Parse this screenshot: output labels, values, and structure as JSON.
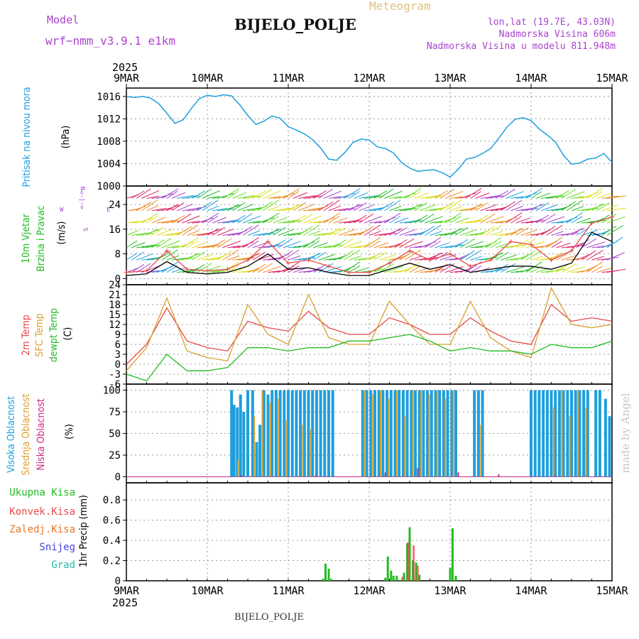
{
  "header": {
    "model_label": "Model",
    "model_value": "wrf−nmm_v3.9.1  e1km",
    "title": "BIJELO_POLJE",
    "subtitle": "Meteogram",
    "coords": "lon,lat (19.7E, 43.03N)",
    "elevation": "Nadmorska Visina 606m",
    "model_elevation": "Nadmorska Visina u modelu 811.948m",
    "footer_station": "BIJELO_POLJE",
    "credit": "made by Angel"
  },
  "colors": {
    "pressure": "#1e9fdc",
    "wind_label": "#22bb22",
    "wind_dir": "#aa44cc",
    "temp2m": "#e84848",
    "sfc_temp": "#d9a030",
    "dewpt": "#22bb22",
    "cloud_high": "#1e9fdc",
    "cloud_mid": "#d9a030",
    "cloud_low": "#cc2a80",
    "precip_total": "#22bb22",
    "precip_conv": "#e84848",
    "precip_frz": "#e8782a",
    "precip_snow": "#4444dd",
    "precip_hail": "#22bbaa",
    "credit": "#c8c8c8"
  },
  "chart_data": [
    {
      "type": "line",
      "panel": "pressure",
      "x_tick_labels": [
        "9MAR",
        "10MAR",
        "11MAR",
        "12MAR",
        "13MAR",
        "14MAR",
        "15MAR"
      ],
      "year_label": "2025",
      "ylabel": "Pritisak na nivou mora",
      "yunit": "(hPa)",
      "ylim": [
        1000,
        1017.5
      ],
      "yticks": [
        1000,
        1004,
        1008,
        1012,
        1016
      ],
      "series": [
        {
          "x": [
            0,
            0.1,
            0.2,
            0.3,
            0.4,
            0.5,
            0.6,
            0.7,
            0.8,
            0.9,
            1.0,
            1.1,
            1.2,
            1.3,
            1.4,
            1.5,
            1.6,
            1.7,
            1.8,
            1.9,
            2.0,
            2.1,
            2.2,
            2.3,
            2.4,
            2.5,
            2.6,
            2.7,
            2.8,
            2.9,
            3.0,
            3.1,
            3.2,
            3.3,
            3.4,
            3.5,
            3.6,
            3.7,
            3.8,
            3.9,
            4.0,
            4.1,
            4.2,
            4.3,
            4.4,
            4.5,
            4.6,
            4.7,
            4.8,
            4.9,
            5.0,
            5.1,
            5.2,
            5.3,
            5.4,
            5.5,
            5.6,
            5.7,
            5.8,
            5.9,
            6.0
          ],
          "values": [
            1016.0,
            1015.8,
            1016.0,
            1015.7,
            1014.7,
            1013.0,
            1011.2,
            1011.8,
            1013.8,
            1015.6,
            1016.2,
            1016.0,
            1016.3,
            1016.1,
            1014.5,
            1012.6,
            1011.0,
            1011.6,
            1012.5,
            1012.1,
            1010.6,
            1010.0,
            1009.3,
            1008.3,
            1006.8,
            1004.8,
            1004.6,
            1006.0,
            1007.8,
            1008.4,
            1008.2,
            1007.0,
            1006.7,
            1005.9,
            1004.2,
            1003.2,
            1002.6,
            1002.8,
            1002.9,
            1002.4,
            1001.6,
            1003.0,
            1004.8,
            1005.1,
            1005.8,
            1006.7,
            1008.5,
            1010.5,
            1011.9,
            1012.2,
            1011.7,
            1010.2,
            1009.1,
            1007.9,
            1005.5,
            1003.9,
            1004.1,
            1004.8,
            1005.0,
            1005.8,
            1004.2
          ]
        }
      ]
    },
    {
      "type": "line",
      "panel": "wind",
      "ylabel": "10m Vjetar Brzina i Pravac",
      "yunit": "(m/s)",
      "ylim": [
        -2,
        30
      ],
      "yticks": [
        0,
        8,
        16,
        24
      ],
      "direction_key": {
        "n": "N",
        "e": "E",
        "s": "S",
        "w": "W",
        "arrow": "<—|—>"
      },
      "series": [
        {
          "name": "speed",
          "x": [
            0,
            0.25,
            0.5,
            0.75,
            1.0,
            1.25,
            1.5,
            1.75,
            2.0,
            2.25,
            2.5,
            2.75,
            3.0,
            3.25,
            3.5,
            3.75,
            4.0,
            4.25,
            4.5,
            4.75,
            5.0,
            5.25,
            5.5,
            5.75,
            6.0
          ],
          "values": [
            1.0,
            1.5,
            5.5,
            2.0,
            1.5,
            2.0,
            4.0,
            8.0,
            3.0,
            3.5,
            2.0,
            1.0,
            1.0,
            3.0,
            5.0,
            3.0,
            4.5,
            2.0,
            3.0,
            4.0,
            4.0,
            3.0,
            5.0,
            15.0,
            12.0
          ]
        },
        {
          "name": "gust",
          "x": [
            0,
            0.25,
            0.5,
            0.75,
            1.0,
            1.25,
            1.5,
            1.75,
            2.0,
            2.25,
            2.5,
            2.75,
            3.0,
            3.25,
            3.5,
            3.75,
            4.0,
            4.25,
            4.5,
            4.75,
            5.0,
            5.25,
            5.5,
            5.75,
            6.0
          ],
          "values": [
            2.0,
            2.5,
            9.0,
            3.0,
            2.5,
            3.0,
            6.0,
            12.0,
            5.0,
            6.0,
            4.0,
            2.0,
            2.0,
            5.0,
            9.0,
            6.0,
            8.0,
            4.0,
            6.0,
            12.0,
            11.0,
            6.0,
            9.0,
            18.0,
            20.0
          ]
        }
      ]
    },
    {
      "type": "line",
      "panel": "temperature",
      "ylabel": "2m Temp SFC Temp dewpt Temp",
      "yunit": "(C)",
      "ylim": [
        -6,
        24
      ],
      "yticks": [
        -6,
        -3,
        0,
        3,
        6,
        9,
        12,
        15,
        18,
        21,
        24
      ],
      "series": [
        {
          "name": "2m Temp",
          "x": [
            0,
            0.25,
            0.5,
            0.75,
            1.0,
            1.25,
            1.5,
            1.75,
            2.0,
            2.25,
            2.5,
            2.75,
            3.0,
            3.25,
            3.5,
            3.75,
            4.0,
            4.25,
            4.5,
            4.75,
            5.0,
            5.25,
            5.5,
            5.75,
            6.0
          ],
          "values": [
            0.0,
            6.0,
            17.0,
            7.0,
            5.0,
            4.0,
            13.0,
            11.0,
            10.0,
            16.0,
            11.0,
            9.0,
            9.0,
            14.0,
            12.0,
            9.0,
            9.0,
            14.0,
            10.0,
            7.0,
            6.0,
            18.0,
            13.0,
            14.0,
            13.0
          ]
        },
        {
          "name": "SFC Temp",
          "x": [
            0,
            0.25,
            0.5,
            0.75,
            1.0,
            1.25,
            1.5,
            1.75,
            2.0,
            2.25,
            2.5,
            2.75,
            3.0,
            3.25,
            3.5,
            3.75,
            4.0,
            4.25,
            4.5,
            4.75,
            5.0,
            5.25,
            5.5,
            5.75,
            6.0
          ],
          "values": [
            -2.0,
            5.0,
            20.0,
            4.0,
            2.0,
            1.0,
            18.0,
            9.0,
            6.0,
            21.0,
            8.0,
            6.0,
            6.0,
            19.0,
            12.0,
            6.0,
            6.0,
            19.0,
            8.0,
            4.0,
            2.0,
            23.0,
            12.0,
            11.0,
            12.0
          ]
        },
        {
          "name": "dewpt Temp",
          "x": [
            0,
            0.25,
            0.5,
            0.75,
            1.0,
            1.25,
            1.5,
            1.75,
            2.0,
            2.25,
            2.5,
            2.75,
            3.0,
            3.25,
            3.5,
            3.75,
            4.0,
            4.25,
            4.5,
            4.75,
            5.0,
            5.25,
            5.5,
            5.75,
            6.0
          ],
          "values": [
            -3.0,
            -5.0,
            3.0,
            -2.0,
            -2.0,
            -1.0,
            5.0,
            5.0,
            4.0,
            5.0,
            5.0,
            7.0,
            7.0,
            8.0,
            9.0,
            7.0,
            4.0,
            5.0,
            4.0,
            4.0,
            3.0,
            6.0,
            5.0,
            5.0,
            7.0
          ]
        }
      ]
    },
    {
      "type": "bar",
      "panel": "cloud",
      "ylabel": "Visoka Oblacnost Srednja Oblacnost Niska Oblacnost",
      "yunit": "(%)",
      "ylim": [
        -7,
        107
      ],
      "yticks": [
        0,
        25,
        50,
        75,
        100
      ],
      "series": [
        {
          "name": "Visoka Oblacnost",
          "x": [
            1.3,
            1.33,
            1.37,
            1.41,
            1.45,
            1.5,
            1.56,
            1.61,
            1.65,
            1.7,
            1.75,
            1.8,
            1.85,
            1.9,
            1.95,
            2.0,
            2.05,
            2.1,
            2.15,
            2.2,
            2.25,
            2.3,
            2.35,
            2.4,
            2.45,
            2.5,
            2.55,
            2.92,
            2.97,
            3.02,
            3.07,
            3.12,
            3.17,
            3.22,
            3.27,
            3.32,
            3.37,
            3.42,
            3.47,
            3.52,
            3.57,
            3.62,
            3.67,
            3.72,
            3.77,
            3.82,
            3.87,
            3.92,
            3.97,
            4.02,
            4.07,
            4.3,
            4.35,
            4.4,
            5.0,
            5.05,
            5.1,
            5.15,
            5.2,
            5.25,
            5.3,
            5.35,
            5.4,
            5.45,
            5.5,
            5.55,
            5.6,
            5.65,
            5.7,
            5.8,
            5.85,
            5.92,
            5.97
          ],
          "values": [
            100,
            83,
            80,
            95,
            75,
            100,
            100,
            40,
            60,
            100,
            95,
            100,
            100,
            100,
            100,
            100,
            100,
            100,
            100,
            100,
            100,
            100,
            100,
            100,
            100,
            100,
            100,
            100,
            100,
            100,
            100,
            100,
            100,
            100,
            100,
            100,
            100,
            100,
            100,
            100,
            100,
            100,
            100,
            100,
            100,
            100,
            100,
            100,
            100,
            100,
            100,
            100,
            100,
            100,
            100,
            100,
            100,
            100,
            100,
            100,
            100,
            100,
            100,
            100,
            100,
            100,
            100,
            100,
            100,
            100,
            100,
            90,
            70
          ]
        },
        {
          "name": "Srednja Oblacnost",
          "x": [
            1.38,
            1.58,
            1.68,
            1.78,
            1.88,
            1.98,
            2.18,
            2.28,
            2.94,
            3.04,
            3.14,
            3.24,
            3.34,
            3.44,
            3.54,
            3.64,
            3.74,
            3.84,
            3.94,
            4.04,
            4.38,
            5.28,
            5.38,
            5.48,
            5.58,
            5.68
          ],
          "values": [
            20,
            70,
            100,
            85,
            90,
            65,
            60,
            55,
            100,
            95,
            100,
            90,
            100,
            70,
            100,
            100,
            95,
            100,
            90,
            100,
            60,
            80,
            100,
            70,
            100,
            80
          ]
        },
        {
          "name": "Niska Oblacnost",
          "x": [
            1.42,
            2.34,
            3.2,
            3.6,
            4.1,
            4.6,
            5.3
          ],
          "values": [
            2,
            2,
            5,
            10,
            5,
            3,
            2
          ]
        }
      ]
    },
    {
      "type": "bar",
      "panel": "precip",
      "ylabel": "1hr Precip (mm)",
      "ylim": [
        0,
        0.97
      ],
      "yticks": [
        0,
        0.2,
        0.4,
        0.6,
        0.8
      ],
      "legend": [
        "Ukupna Kisa",
        "Konvek.Kisa",
        "Zaledj.Kisa",
        "Snijeg",
        "Grad"
      ],
      "series": [
        {
          "name": "Ukupna Kisa",
          "x": [
            2.43,
            2.46,
            2.5,
            2.53,
            3.2,
            3.23,
            3.27,
            3.3,
            3.34,
            3.38,
            3.43,
            3.47,
            3.5,
            3.54,
            3.58,
            3.62,
            4.0,
            4.03,
            4.07
          ],
          "values": [
            0.02,
            0.17,
            0.12,
            0.02,
            0.03,
            0.24,
            0.1,
            0.05,
            0.05,
            0.01,
            0.08,
            0.37,
            0.53,
            0.2,
            0.18,
            0.06,
            0.13,
            0.52,
            0.05
          ]
        },
        {
          "name": "Konvek.Kisa",
          "x": [
            3.41,
            3.48,
            3.55,
            3.6
          ],
          "values": [
            0.04,
            0.38,
            0.35,
            0.15
          ]
        }
      ]
    }
  ],
  "x_axis": {
    "ticks_top": [
      "9MAR",
      "10MAR",
      "11MAR",
      "12MAR",
      "13MAR",
      "14MAR",
      "15MAR"
    ],
    "ticks_bottom": [
      "9MAR",
      "10MAR",
      "11MAR",
      "12MAR",
      "13MAR",
      "14MAR",
      "15MAR"
    ],
    "year_top": "2025",
    "year_bottom": "2025"
  },
  "labels": {
    "pressure": [
      "Pritisak na nivou mora"
    ],
    "pressure_unit": "(hPa)",
    "wind": [
      "10m Vjetar",
      "Brzina i Pravac"
    ],
    "wind_unit": "(m/s)",
    "temp": [
      "2m Temp",
      "SFC Temp",
      "dewpt Temp"
    ],
    "temp_unit": "(C)",
    "cloud": [
      "Visoka Oblacnost",
      "Srednja Oblacnost",
      "Niska Oblacnost"
    ],
    "cloud_unit": "(%)",
    "precip": [
      "Ukupna Kisa",
      "Konvek.Kisa",
      "Zaledj.Kisa",
      "Snijeg",
      "Grad"
    ],
    "precip_unit": "1hr Precip (mm)"
  }
}
